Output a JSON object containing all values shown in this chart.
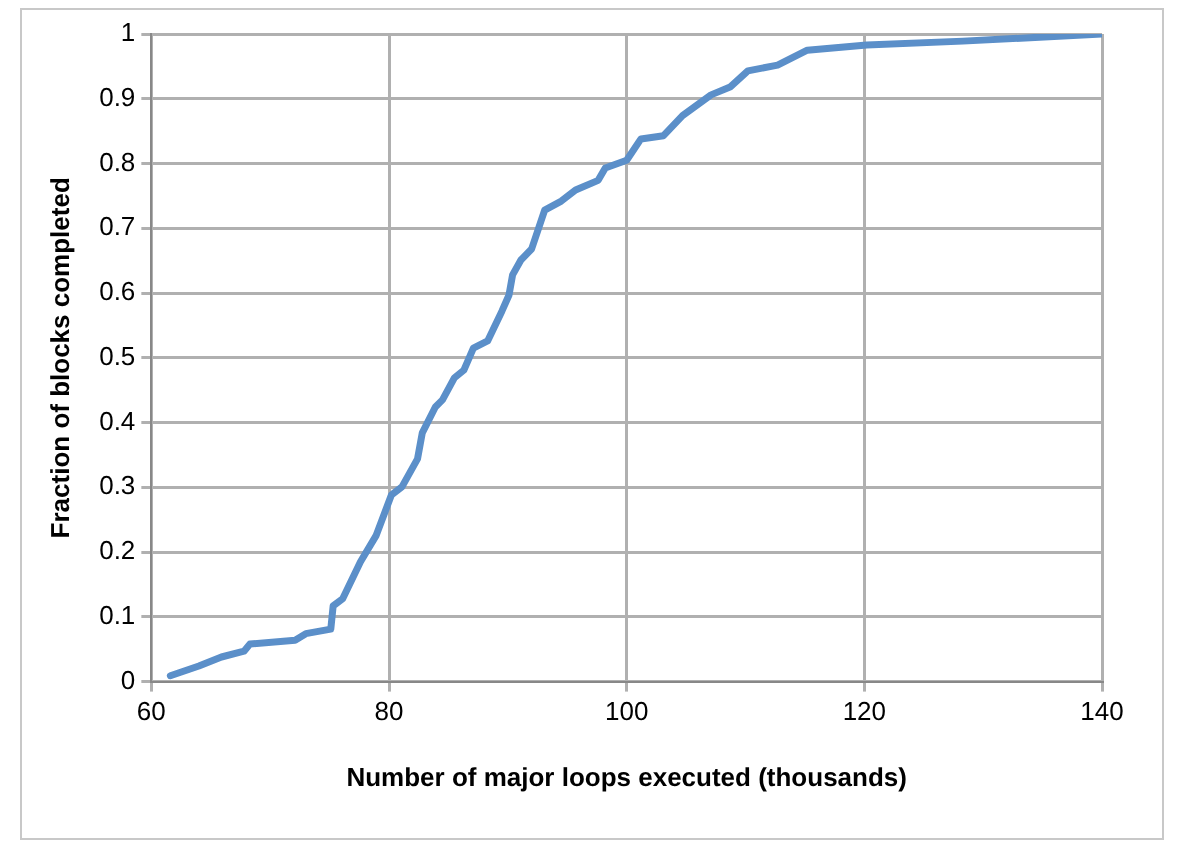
{
  "chart_data": {
    "type": "line",
    "xlabel": "Number of major loops executed (thousands)",
    "ylabel": "Fraction of blocks completed",
    "x": [
      61.6,
      64.0,
      65.9,
      67.8,
      68.3,
      72.1,
      73.0,
      75.1,
      75.3,
      76.1,
      77.6,
      78.9,
      80.2,
      81.1,
      82.4,
      82.8,
      83.9,
      84.5,
      85.5,
      86.3,
      87.1,
      88.3,
      89.5,
      90.1,
      90.4,
      91.1,
      92.0,
      93.1,
      94.5,
      95.7,
      97.6,
      98.2,
      100.0,
      101.2,
      103.1,
      104.7,
      107.1,
      108.7,
      110.2,
      112.7,
      115.2,
      120.2,
      128.3,
      140.0
    ],
    "series": [
      {
        "color": "#5b8fc9",
        "values": [
          0.009,
          0.024,
          0.038,
          0.047,
          0.058,
          0.064,
          0.074,
          0.081,
          0.117,
          0.128,
          0.185,
          0.225,
          0.288,
          0.301,
          0.344,
          0.384,
          0.424,
          0.435,
          0.469,
          0.481,
          0.515,
          0.526,
          0.572,
          0.597,
          0.628,
          0.651,
          0.668,
          0.728,
          0.742,
          0.759,
          0.774,
          0.793,
          0.805,
          0.838,
          0.843,
          0.874,
          0.906,
          0.918,
          0.943,
          0.952,
          0.975,
          0.983,
          0.989,
          1.0
        ]
      }
    ],
    "xlim": [
      60,
      140
    ],
    "xticks": [
      60,
      80,
      100,
      120,
      140
    ],
    "ylim": [
      0,
      1
    ],
    "yticks": [
      0,
      0.1,
      0.2,
      0.3,
      0.4,
      0.5,
      0.6,
      0.7,
      0.8,
      0.9,
      1
    ],
    "grid": true,
    "legend": false,
    "marker": "none",
    "line_style": "solid"
  }
}
